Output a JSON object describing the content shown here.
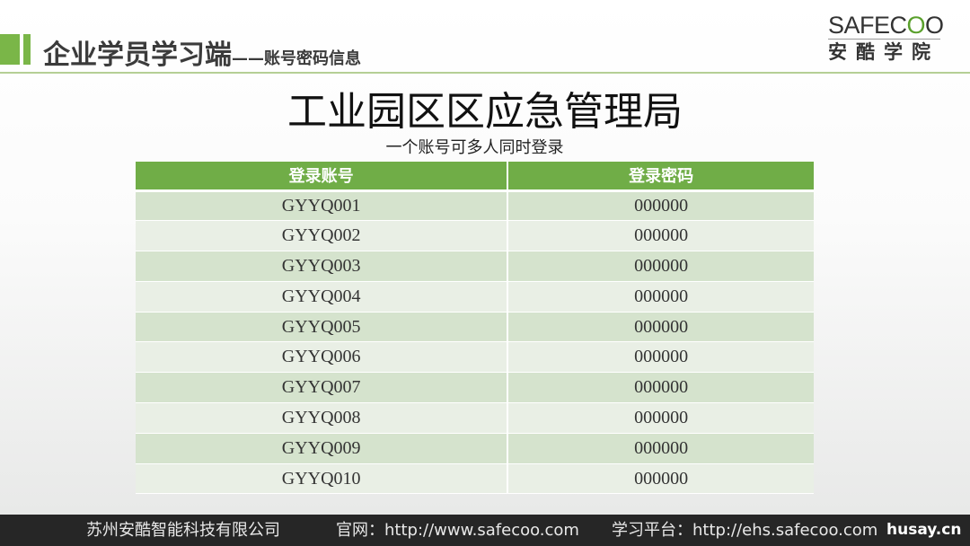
{
  "header": {
    "title": "企业学员学习端",
    "subtitle": "——账号密码信息"
  },
  "logo": {
    "en_prefix": "SAFEC",
    "en_globe": "O",
    "en_suffix": "O",
    "cn": "安酷学院"
  },
  "main_title": "工业园区区应急管理局",
  "note": "一个账号可多人同时登录",
  "colors": {
    "accent": "#70ad47",
    "row_dark": "#d5e3cd",
    "row_light": "#e9efe5",
    "footer_bg": "#262626"
  },
  "table": {
    "columns": [
      "登录账号",
      "登录密码"
    ],
    "rows": [
      [
        "GYYQ001",
        "000000"
      ],
      [
        "GYYQ002",
        "000000"
      ],
      [
        "GYYQ003",
        "000000"
      ],
      [
        "GYYQ004",
        "000000"
      ],
      [
        "GYYQ005",
        "000000"
      ],
      [
        "GYYQ006",
        "000000"
      ],
      [
        "GYYQ007",
        "000000"
      ],
      [
        "GYYQ008",
        "000000"
      ],
      [
        "GYYQ009",
        "000000"
      ],
      [
        "GYYQ010",
        "000000"
      ]
    ]
  },
  "footer": {
    "company": "苏州安酷智能科技有限公司",
    "website": "官网：http://www.safecoo.com",
    "platform": "学习平台：http://ehs.safecoo.com",
    "watermark": "husay.cn"
  }
}
